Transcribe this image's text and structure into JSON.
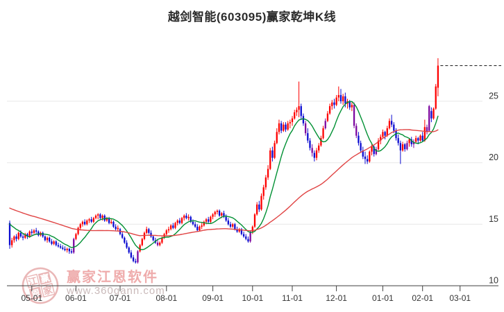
{
  "title": "越剑智能(603095)赢家乾坤K线",
  "watermark": {
    "logo_chars": [
      "江",
      "赢",
      "恩",
      "家"
    ],
    "name": "赢家江恩软件",
    "url": "www.360gann.com"
  },
  "colors": {
    "candle_up": "#fe0000",
    "candle_down": "#0b0bd0",
    "candle_signal": "#7d07a0",
    "ma_fast": "#009033",
    "ma_slow": "#e04343",
    "grid": "#e7e7e7",
    "axis": "#3f3f3f",
    "label": "#333333",
    "ref_line": "#111111",
    "title": "#2b2b2b",
    "watermark_pink": "#e29c9c"
  },
  "chart_data": {
    "type": "candlestick",
    "title": "越剑智能(603095)赢家乾坤K线",
    "x_tick_labels": [
      "05-01",
      "06-01",
      "07-01",
      "08-01",
      "09-01",
      "10-01",
      "11-01",
      "12-01",
      "01-01",
      "02-01",
      "03-01"
    ],
    "x_tick_indices": [
      10,
      30,
      50,
      71,
      92,
      110,
      128,
      148,
      169,
      187,
      204
    ],
    "y_ticks": [
      10,
      15,
      20,
      25
    ],
    "ylim": [
      9.3,
      29.9
    ],
    "grid": true,
    "price_axis_side": "right",
    "legend": "none",
    "ref_line": {
      "price": 27.9,
      "style": "dashed"
    },
    "ma_definitions": [
      {
        "name": "fast",
        "period": 10,
        "color_key": "ma_fast"
      },
      {
        "name": "slow",
        "period": 60,
        "color_key": "ma_slow"
      }
    ],
    "pre_close_seed": [
      18.2,
      18.15,
      18.1,
      18.0,
      17.95,
      17.9,
      17.8,
      17.75,
      17.7,
      17.6,
      17.55,
      17.5,
      17.4,
      17.35,
      17.3,
      17.2,
      17.15,
      17.1,
      17.0,
      16.95,
      16.9,
      16.8,
      16.75,
      16.7,
      16.6,
      16.55,
      16.5,
      16.4,
      16.35,
      16.3,
      16.2,
      16.15,
      16.1,
      16.0,
      15.95,
      15.9,
      15.85,
      15.8,
      15.75,
      15.7,
      15.65,
      15.6,
      15.55,
      15.5,
      15.45,
      15.4,
      15.38,
      15.36,
      15.34,
      15.32,
      15.3,
      15.28,
      15.26,
      15.24,
      15.22,
      15.2,
      15.18,
      15.16,
      15.14,
      15.12
    ],
    "candles": [
      [
        15.1,
        15.3,
        13.0,
        13.3
      ],
      [
        13.3,
        13.9,
        13.1,
        13.7
      ],
      [
        13.7,
        14.1,
        13.5,
        14.0
      ],
      [
        14.0,
        14.2,
        13.6,
        13.8
      ],
      [
        13.8,
        14.4,
        13.7,
        14.3
      ],
      [
        14.3,
        14.5,
        13.9,
        14.0
      ],
      [
        14.0,
        14.2,
        13.7,
        13.9
      ],
      [
        13.9,
        14.3,
        13.8,
        14.2
      ],
      [
        14.2,
        14.3,
        13.8,
        14.0
      ],
      [
        14.0,
        14.5,
        13.9,
        14.4
      ],
      [
        14.4,
        14.6,
        14.1,
        14.3
      ],
      [
        14.3,
        14.6,
        14.2,
        14.5
      ],
      [
        14.5,
        14.7,
        14.2,
        14.4
      ],
      [
        14.4,
        14.5,
        14.0,
        14.1
      ],
      [
        14.1,
        14.4,
        14.0,
        14.3
      ],
      [
        14.3,
        14.4,
        13.9,
        14.0
      ],
      [
        14.0,
        14.1,
        13.6,
        13.7
      ],
      [
        13.7,
        14.0,
        13.5,
        13.9
      ],
      [
        13.9,
        14.0,
        13.5,
        13.6
      ],
      [
        13.6,
        13.8,
        13.3,
        13.4
      ],
      [
        13.4,
        13.7,
        13.3,
        13.6
      ],
      [
        13.6,
        13.7,
        13.2,
        13.3
      ],
      [
        13.3,
        13.5,
        13.1,
        13.2
      ],
      [
        13.2,
        13.4,
        13.0,
        13.1
      ],
      [
        13.1,
        13.3,
        12.9,
        13.0
      ],
      [
        13.0,
        13.2,
        12.8,
        12.9
      ],
      [
        12.9,
        13.1,
        12.7,
        13.0
      ],
      [
        13.0,
        13.1,
        12.6,
        12.8
      ],
      [
        12.8,
        13.0,
        12.6,
        12.7
      ],
      [
        12.7,
        13.9,
        12.6,
        13.8,
        "p"
      ],
      [
        13.8,
        14.3,
        13.7,
        14.2
      ],
      [
        14.2,
        14.8,
        14.1,
        14.7
      ],
      [
        14.7,
        15.1,
        14.5,
        15.0
      ],
      [
        15.0,
        15.3,
        14.8,
        15.2
      ],
      [
        15.2,
        15.4,
        14.9,
        15.0
      ],
      [
        15.0,
        15.4,
        14.9,
        15.3
      ],
      [
        15.3,
        15.5,
        15.1,
        15.4
      ],
      [
        15.4,
        15.6,
        15.1,
        15.2
      ],
      [
        15.2,
        15.6,
        15.1,
        15.5
      ],
      [
        15.5,
        15.8,
        15.4,
        15.7
      ],
      [
        15.7,
        15.9,
        15.4,
        15.8
      ],
      [
        15.8,
        15.9,
        15.4,
        15.5
      ],
      [
        15.5,
        15.8,
        15.3,
        15.7
      ],
      [
        15.7,
        15.8,
        15.2,
        15.3
      ],
      [
        15.3,
        15.6,
        15.2,
        15.5
      ],
      [
        15.5,
        15.6,
        15.0,
        15.1
      ],
      [
        15.1,
        15.4,
        15.0,
        15.2
      ],
      [
        15.2,
        15.3,
        14.7,
        14.8
      ],
      [
        14.8,
        15.0,
        14.5,
        14.6
      ],
      [
        14.6,
        14.9,
        14.4,
        14.7
      ],
      [
        14.6,
        14.7,
        14.1,
        14.2
      ],
      [
        14.2,
        14.4,
        13.8,
        13.9
      ],
      [
        13.9,
        14.0,
        13.4,
        13.5
      ],
      [
        13.5,
        13.7,
        13.0,
        13.1
      ],
      [
        13.1,
        13.2,
        12.6,
        12.7
      ],
      [
        12.7,
        12.9,
        12.2,
        12.3
      ],
      [
        12.3,
        12.5,
        11.9,
        12.0
      ],
      [
        12.0,
        12.2,
        11.8,
        11.9
      ],
      [
        11.9,
        12.9,
        11.8,
        12.8,
        "p"
      ],
      [
        12.8,
        13.4,
        12.7,
        13.3
      ],
      [
        13.3,
        13.9,
        13.2,
        13.8
      ],
      [
        13.8,
        14.4,
        13.7,
        14.3
      ],
      [
        14.3,
        14.8,
        14.2,
        14.6
      ],
      [
        14.6,
        14.7,
        14.2,
        14.3
      ],
      [
        14.3,
        14.5,
        13.9,
        14.0
      ],
      [
        14.0,
        14.1,
        13.6,
        13.7
      ],
      [
        13.7,
        13.9,
        13.4,
        13.5
      ],
      [
        13.5,
        13.8,
        13.2,
        13.3,
        "p"
      ],
      [
        13.3,
        13.6,
        13.2,
        13.5
      ],
      [
        13.5,
        14.0,
        13.4,
        13.9
      ],
      [
        13.9,
        14.3,
        13.8,
        14.2
      ],
      [
        14.2,
        14.6,
        14.1,
        14.5
      ],
      [
        14.5,
        14.8,
        14.3,
        14.6
      ],
      [
        14.6,
        15.0,
        14.5,
        14.9
      ],
      [
        14.9,
        15.1,
        14.6,
        14.7
      ],
      [
        14.7,
        15.2,
        14.6,
        15.1
      ],
      [
        15.1,
        15.4,
        14.9,
        15.3
      ],
      [
        15.3,
        15.5,
        15.0,
        15.1
      ],
      [
        15.1,
        15.6,
        15.0,
        15.5
      ],
      [
        15.5,
        15.8,
        15.3,
        15.7
      ],
      [
        15.7,
        15.9,
        15.4,
        15.5
      ],
      [
        15.5,
        15.8,
        15.3,
        15.6
      ],
      [
        15.6,
        15.7,
        15.1,
        15.2
      ],
      [
        15.2,
        15.4,
        14.9,
        15.0
      ],
      [
        15.0,
        15.2,
        14.7,
        14.8
      ],
      [
        14.8,
        15.0,
        14.4,
        14.5
      ],
      [
        14.5,
        14.9,
        14.4,
        14.8
      ],
      [
        14.8,
        15.1,
        14.6,
        14.9
      ],
      [
        14.9,
        15.3,
        14.8,
        15.2
      ],
      [
        15.2,
        15.5,
        15.0,
        15.4
      ],
      [
        15.4,
        15.6,
        15.1,
        15.2
      ],
      [
        15.2,
        15.7,
        15.1,
        15.6
      ],
      [
        15.6,
        15.9,
        15.4,
        15.8
      ],
      [
        15.8,
        16.1,
        15.6,
        16.0
      ],
      [
        16.0,
        16.2,
        15.8,
        16.1
      ],
      [
        16.1,
        16.2,
        15.6,
        15.7
      ],
      [
        15.7,
        16.0,
        15.5,
        15.9
      ],
      [
        15.9,
        16.1,
        15.5,
        15.6
      ],
      [
        15.6,
        15.8,
        15.2,
        15.3
      ],
      [
        15.3,
        15.5,
        14.9,
        15.0
      ],
      [
        15.0,
        15.2,
        14.7,
        14.8
      ],
      [
        14.8,
        15.1,
        14.7,
        15.0
      ],
      [
        15.0,
        15.1,
        14.5,
        14.6
      ],
      [
        14.6,
        14.8,
        14.3,
        14.4
      ],
      [
        14.4,
        14.7,
        14.3,
        14.6
      ],
      [
        14.6,
        14.7,
        14.1,
        14.2
      ],
      [
        14.2,
        14.4,
        13.9,
        14.0
      ],
      [
        14.0,
        14.2,
        13.7,
        13.8
      ],
      [
        13.8,
        14.0,
        13.5,
        13.6
      ],
      [
        13.6,
        14.5,
        13.5,
        14.4,
        "p"
      ],
      [
        14.4,
        14.9,
        14.2,
        14.8
      ],
      [
        14.8,
        15.9,
        14.7,
        15.8
      ],
      [
        15.8,
        16.8,
        15.7,
        16.6
      ],
      [
        16.6,
        16.9,
        16.0,
        16.2
      ],
      [
        16.2,
        17.5,
        16.1,
        17.3
      ],
      [
        17.3,
        18.2,
        17.0,
        18.0
      ],
      [
        18.0,
        19.0,
        17.8,
        18.8
      ],
      [
        18.8,
        19.8,
        18.6,
        19.5
      ],
      [
        19.5,
        21.2,
        19.4,
        21.0
      ],
      [
        21.0,
        21.3,
        20.1,
        20.4
      ],
      [
        20.4,
        21.8,
        20.3,
        21.6
      ],
      [
        21.6,
        22.8,
        21.5,
        22.5
      ],
      [
        22.5,
        23.5,
        22.3,
        23.2
      ],
      [
        23.2,
        23.4,
        22.4,
        22.6
      ],
      [
        22.6,
        23.3,
        22.5,
        23.1
      ],
      [
        23.1,
        23.3,
        22.5,
        22.7
      ],
      [
        22.7,
        23.4,
        22.6,
        23.2
      ],
      [
        23.2,
        23.5,
        22.8,
        23.3
      ],
      [
        23.3,
        23.8,
        23.0,
        23.6
      ],
      [
        23.6,
        24.3,
        23.5,
        24.1
      ],
      [
        24.1,
        24.5,
        23.8,
        24.3
      ],
      [
        24.3,
        26.6,
        23.7,
        24.6
      ],
      [
        24.6,
        24.8,
        23.5,
        23.8
      ],
      [
        23.8,
        24.0,
        23.0,
        23.2
      ],
      [
        23.2,
        23.4,
        22.2,
        22.4,
        "p"
      ],
      [
        22.4,
        22.8,
        21.6,
        21.8
      ],
      [
        21.8,
        22.0,
        21.0,
        21.2
      ],
      [
        21.2,
        21.5,
        20.5,
        20.8,
        "p"
      ],
      [
        20.8,
        21.0,
        20.1,
        20.4
      ],
      [
        20.4,
        21.2,
        20.2,
        21.0
      ],
      [
        21.0,
        21.6,
        20.8,
        21.4
      ],
      [
        21.4,
        22.2,
        21.3,
        22.0
      ],
      [
        22.0,
        23.0,
        21.9,
        22.8
      ],
      [
        22.8,
        23.6,
        22.7,
        23.4,
        "p"
      ],
      [
        23.4,
        24.2,
        23.3,
        24.0
      ],
      [
        24.0,
        24.8,
        23.9,
        24.6
      ],
      [
        24.6,
        25.1,
        24.3,
        24.9
      ],
      [
        24.9,
        25.2,
        24.4,
        24.7
      ],
      [
        24.7,
        25.5,
        24.6,
        25.3
      ],
      [
        25.3,
        26.2,
        25.0,
        25.5
      ],
      [
        25.5,
        26.0,
        24.8,
        25.0
      ],
      [
        25.0,
        25.6,
        24.7,
        25.4
      ],
      [
        25.4,
        25.7,
        24.5,
        24.8
      ],
      [
        24.8,
        25.2,
        24.4,
        25.0
      ],
      [
        25.0,
        25.1,
        24.3,
        24.5
      ],
      [
        24.5,
        24.9,
        24.2,
        24.7
      ],
      [
        24.7,
        24.9,
        22.8,
        23.0,
        "p"
      ],
      [
        23.0,
        23.2,
        22.0,
        22.2,
        "p"
      ],
      [
        22.2,
        22.5,
        21.4,
        21.6
      ],
      [
        21.6,
        21.8,
        20.8,
        21.0
      ],
      [
        21.0,
        21.3,
        20.3,
        20.5
      ],
      [
        20.5,
        20.9,
        19.9,
        20.3
      ],
      [
        20.3,
        20.6,
        19.9,
        20.1
      ],
      [
        20.1,
        21.0,
        20.0,
        20.9
      ],
      [
        20.9,
        21.5,
        20.6,
        21.3
      ],
      [
        21.3,
        21.4,
        20.5,
        20.7
      ],
      [
        20.7,
        21.3,
        20.6,
        21.1,
        "p"
      ],
      [
        21.1,
        22.0,
        21.0,
        21.8
      ],
      [
        21.8,
        22.3,
        21.5,
        22.1
      ],
      [
        22.1,
        22.7,
        22.0,
        22.5
      ],
      [
        22.5,
        22.6,
        21.9,
        22.2
      ],
      [
        22.2,
        23.0,
        22.1,
        22.8
      ],
      [
        22.8,
        23.6,
        22.7,
        23.4
      ],
      [
        23.4,
        23.9,
        22.9,
        23.1
      ],
      [
        23.1,
        23.3,
        22.4,
        22.6
      ],
      [
        22.6,
        22.8,
        21.8,
        22.0
      ],
      [
        22.0,
        22.3,
        21.4,
        21.6
      ],
      [
        21.6,
        21.8,
        19.9,
        21.0
      ],
      [
        21.0,
        21.7,
        20.9,
        21.5
      ],
      [
        21.5,
        21.6,
        20.9,
        21.1
      ],
      [
        21.1,
        21.8,
        21.0,
        21.6,
        "p"
      ],
      [
        21.6,
        22.0,
        21.3,
        21.9
      ],
      [
        21.9,
        22.1,
        21.3,
        21.5
      ],
      [
        21.5,
        21.9,
        21.2,
        21.7,
        "p"
      ],
      [
        21.7,
        22.2,
        21.6,
        22.0
      ],
      [
        22.0,
        22.1,
        21.5,
        21.8
      ],
      [
        21.8,
        22.3,
        21.7,
        22.2
      ],
      [
        22.2,
        22.5,
        21.7,
        21.8
      ],
      [
        21.8,
        23.5,
        21.7,
        22.9
      ],
      [
        22.9,
        23.1,
        22.3,
        22.5,
        "p"
      ],
      [
        22.6,
        24.7,
        22.5,
        24.6,
        "p"
      ],
      [
        24.2,
        24.5,
        23.3,
        23.6
      ],
      [
        23.6,
        24.5,
        23.5,
        24.4
      ],
      [
        24.4,
        26.4,
        24.3,
        26.2
      ],
      [
        26.1,
        28.5,
        25.4,
        27.9
      ]
    ]
  }
}
